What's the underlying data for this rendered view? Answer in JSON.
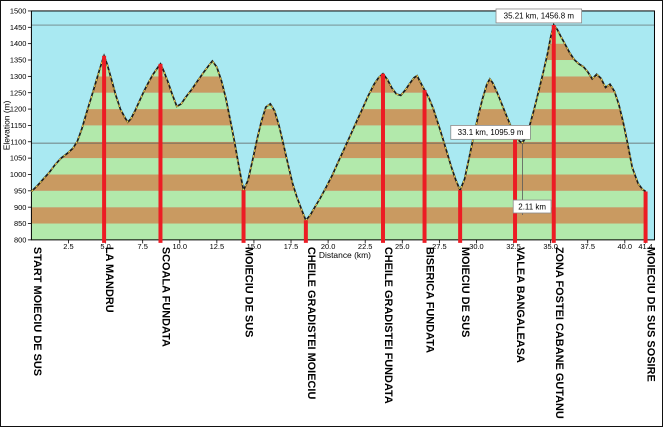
{
  "chart_data": {
    "type": "area",
    "title": "",
    "xlabel": "Distance  (km)",
    "ylabel": "Elevation (m)",
    "xlim": [
      0,
      42
    ],
    "ylim": [
      800,
      1500
    ],
    "x_ticks": [
      2.5,
      5,
      7.5,
      10,
      12.5,
      15,
      17.5,
      20,
      22.5,
      25,
      27.5,
      30,
      32.5,
      35,
      37.5,
      40,
      41.4
    ],
    "y_ticks": [
      800,
      850,
      900,
      950,
      1000,
      1050,
      1100,
      1150,
      1200,
      1250,
      1300,
      1350,
      1400,
      1450,
      1500
    ],
    "band_step_m": 50,
    "grid": false,
    "legend": "none",
    "colors": {
      "plot_bg": "#a9e9f2",
      "band_green": "#b2e9ab",
      "band_brown": "#c99a61",
      "line": "#1b1b1b",
      "line_dash": "#ffd94a",
      "marker_red": "#ec1c24",
      "annotation_line": "#5a5a5a",
      "box_border": "#8a8a8a",
      "box_fill": "#ffffff"
    },
    "profile": [
      [
        0,
        948
      ],
      [
        0.4,
        966
      ],
      [
        0.8,
        986
      ],
      [
        1.2,
        1006
      ],
      [
        1.6,
        1030
      ],
      [
        2,
        1050
      ],
      [
        2.4,
        1064
      ],
      [
        2.8,
        1080
      ],
      [
        3.1,
        1102
      ],
      [
        3.4,
        1140
      ],
      [
        3.7,
        1186
      ],
      [
        4,
        1230
      ],
      [
        4.3,
        1276
      ],
      [
        4.6,
        1322
      ],
      [
        4.8,
        1350
      ],
      [
        4.9,
        1363
      ],
      [
        5.1,
        1338
      ],
      [
        5.4,
        1290
      ],
      [
        5.7,
        1240
      ],
      [
        6,
        1200
      ],
      [
        6.3,
        1174
      ],
      [
        6.5,
        1160
      ],
      [
        6.7,
        1170
      ],
      [
        7,
        1196
      ],
      [
        7.3,
        1226
      ],
      [
        7.6,
        1256
      ],
      [
        7.9,
        1282
      ],
      [
        8.2,
        1306
      ],
      [
        8.5,
        1326
      ],
      [
        8.7,
        1338
      ],
      [
        8.9,
        1318
      ],
      [
        9.2,
        1284
      ],
      [
        9.5,
        1244
      ],
      [
        9.8,
        1208
      ],
      [
        10.1,
        1216
      ],
      [
        10.4,
        1236
      ],
      [
        10.8,
        1260
      ],
      [
        11.2,
        1286
      ],
      [
        11.6,
        1312
      ],
      [
        12,
        1336
      ],
      [
        12.2,
        1347
      ],
      [
        12.5,
        1328
      ],
      [
        12.8,
        1288
      ],
      [
        13.1,
        1234
      ],
      [
        13.4,
        1168
      ],
      [
        13.7,
        1098
      ],
      [
        14,
        1020
      ],
      [
        14.3,
        952
      ],
      [
        14.6,
        982
      ],
      [
        14.9,
        1042
      ],
      [
        15.2,
        1106
      ],
      [
        15.5,
        1162
      ],
      [
        15.8,
        1206
      ],
      [
        16.1,
        1216
      ],
      [
        16.4,
        1194
      ],
      [
        16.7,
        1148
      ],
      [
        17,
        1090
      ],
      [
        17.3,
        1030
      ],
      [
        17.6,
        974
      ],
      [
        17.9,
        930
      ],
      [
        18.2,
        894
      ],
      [
        18.5,
        860
      ],
      [
        18.8,
        876
      ],
      [
        19.1,
        900
      ],
      [
        19.5,
        930
      ],
      [
        19.9,
        964
      ],
      [
        20.3,
        1000
      ],
      [
        20.7,
        1040
      ],
      [
        21.1,
        1080
      ],
      [
        21.5,
        1120
      ],
      [
        21.9,
        1160
      ],
      [
        22.3,
        1200
      ],
      [
        22.7,
        1240
      ],
      [
        23.1,
        1276
      ],
      [
        23.4,
        1296
      ],
      [
        23.7,
        1308
      ],
      [
        24,
        1290
      ],
      [
        24.3,
        1264
      ],
      [
        24.6,
        1246
      ],
      [
        24.9,
        1242
      ],
      [
        25.2,
        1258
      ],
      [
        25.5,
        1278
      ],
      [
        25.8,
        1296
      ],
      [
        26,
        1302
      ],
      [
        26.2,
        1284
      ],
      [
        26.5,
        1258
      ],
      [
        26.8,
        1234
      ],
      [
        27.1,
        1200
      ],
      [
        27.4,
        1158
      ],
      [
        27.7,
        1114
      ],
      [
        28,
        1070
      ],
      [
        28.3,
        1024
      ],
      [
        28.6,
        984
      ],
      [
        28.9,
        952
      ],
      [
        29.2,
        986
      ],
      [
        29.5,
        1050
      ],
      [
        29.8,
        1116
      ],
      [
        30.1,
        1176
      ],
      [
        30.4,
        1230
      ],
      [
        30.7,
        1276
      ],
      [
        30.9,
        1292
      ],
      [
        31.1,
        1280
      ],
      [
        31.4,
        1250
      ],
      [
        31.7,
        1216
      ],
      [
        32,
        1182
      ],
      [
        32.3,
        1150
      ],
      [
        32.6,
        1122
      ],
      [
        32.9,
        1102
      ],
      [
        33.1,
        1096
      ],
      [
        33.3,
        1112
      ],
      [
        33.6,
        1152
      ],
      [
        33.9,
        1202
      ],
      [
        34.2,
        1256
      ],
      [
        34.5,
        1312
      ],
      [
        34.8,
        1372
      ],
      [
        35,
        1420
      ],
      [
        35.21,
        1457
      ],
      [
        35.45,
        1443
      ],
      [
        35.7,
        1421
      ],
      [
        36,
        1396
      ],
      [
        36.3,
        1371
      ],
      [
        36.6,
        1351
      ],
      [
        36.9,
        1338
      ],
      [
        37.2,
        1330
      ],
      [
        37.5,
        1314
      ],
      [
        37.8,
        1292
      ],
      [
        38.1,
        1306
      ],
      [
        38.4,
        1294
      ],
      [
        38.7,
        1266
      ],
      [
        39,
        1276
      ],
      [
        39.3,
        1254
      ],
      [
        39.6,
        1214
      ],
      [
        39.9,
        1158
      ],
      [
        40.2,
        1092
      ],
      [
        40.5,
        1022
      ],
      [
        40.9,
        972
      ],
      [
        41.2,
        954
      ],
      [
        41.4,
        948
      ]
    ],
    "waypoints": [
      {
        "label": "START MOIECIU DE SUS",
        "km": 0.05,
        "marker": false
      },
      {
        "label": "LA MANDRU",
        "km": 4.9,
        "marker": true
      },
      {
        "label": "SCOALA FUNDATA",
        "km": 8.7,
        "marker": true
      },
      {
        "label": "MOIECIU DE SUS",
        "km": 14.3,
        "marker": true
      },
      {
        "label": "CHEILE GRADISTEI MOIECIU",
        "km": 18.5,
        "marker": true
      },
      {
        "label": "CHEILE GRADISTEI FUNDATA",
        "km": 23.7,
        "marker": true
      },
      {
        "label": "BISERICA FUNDATA",
        "km": 26.5,
        "marker": true
      },
      {
        "label": "MOIECIU DE SUS",
        "km": 28.9,
        "marker": true
      },
      {
        "label": "VALEA BANGALEASA",
        "km": 32.6,
        "marker": true
      },
      {
        "label": "ZONA FOSTEI CABANE GUTANU",
        "km": 35.21,
        "marker": true
      },
      {
        "label": "MOIECIU DE SUS SOSIRE",
        "km": 41.4,
        "marker": true
      }
    ],
    "annotations": {
      "peak": {
        "text": "35.21 km, 1456.8 m",
        "km": 35.21,
        "elev": 1456.8
      },
      "valley": {
        "text": "33.1 km, 1095.9 m",
        "km": 33.1,
        "elev": 1095.9
      },
      "segment": {
        "text": "2.11 km"
      }
    }
  }
}
